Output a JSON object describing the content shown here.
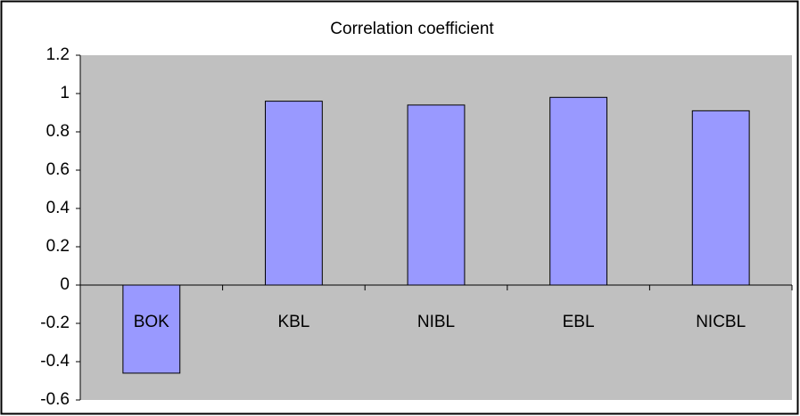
{
  "chart_data": {
    "type": "bar",
    "title": "Correlation coefficient",
    "categories": [
      "BOK",
      "KBL",
      "NIBL",
      "EBL",
      "NICBL"
    ],
    "values": [
      -0.46,
      0.96,
      0.94,
      0.98,
      0.91
    ],
    "color": "#9999ff",
    "ylim": [
      -0.6,
      1.2
    ],
    "yticks": [
      -0.6,
      -0.4,
      -0.2,
      0,
      0.2,
      0.4,
      0.6,
      0.8,
      1,
      1.2
    ],
    "grid": false
  }
}
